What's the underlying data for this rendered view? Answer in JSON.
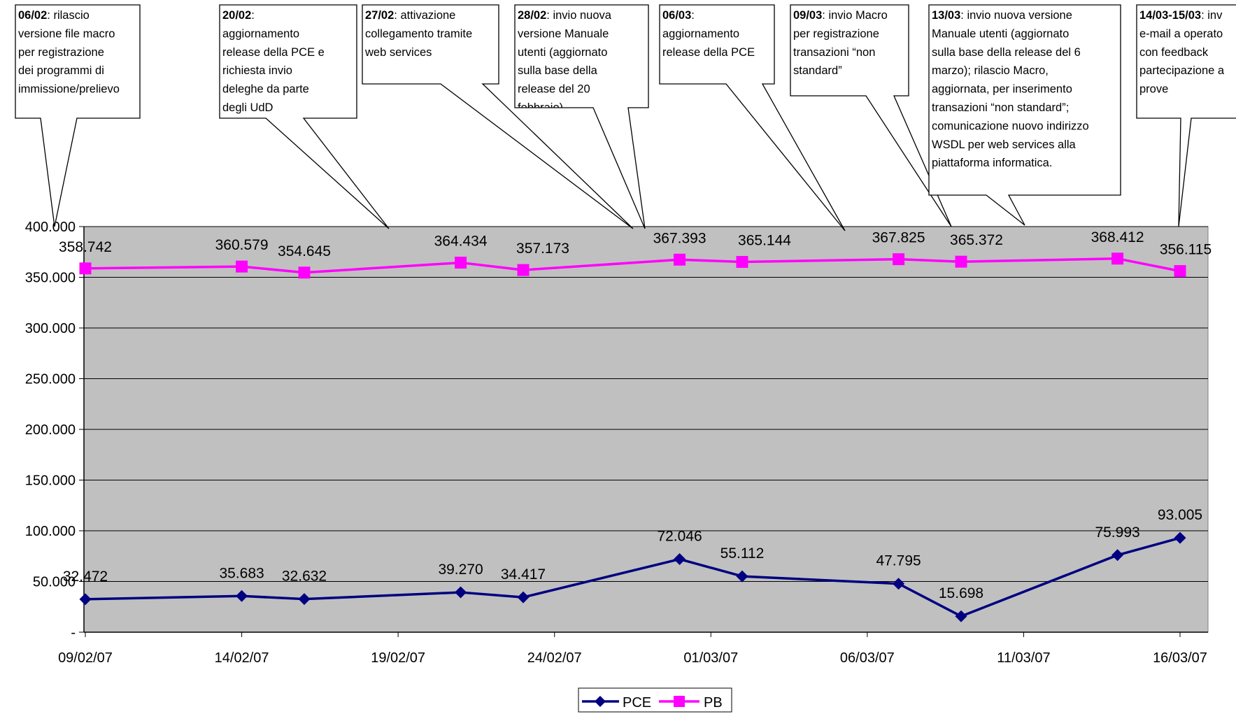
{
  "chart_data": {
    "type": "line",
    "x": [
      "09/02/07",
      "14/02/07",
      "16/02/07",
      "21/02/07",
      "23/02/07",
      "28/02/07",
      "02/03/07",
      "07/03/07",
      "09/03/07",
      "14/03/07",
      "16/03/07"
    ],
    "x_ticks": [
      "09/02/07",
      "14/02/07",
      "19/02/07",
      "24/02/07",
      "01/03/07",
      "06/03/07",
      "11/03/07",
      "16/03/07"
    ],
    "y_ticks": [
      "-",
      "50.000",
      "100.000",
      "150.000",
      "200.000",
      "250.000",
      "300.000",
      "350.000",
      "400.000"
    ],
    "ylim": [
      0,
      400000
    ],
    "grid": true,
    "legend_position": "bottom",
    "series": [
      {
        "name": "PCE",
        "color": "#000080",
        "marker": "diamond",
        "values": [
          32472,
          35683,
          32632,
          39270,
          34417,
          72046,
          55112,
          47795,
          15698,
          75993,
          93005
        ],
        "labels": [
          "32.472",
          "35.683",
          "32.632",
          "39.270",
          "34.417",
          "72.046",
          "55.112",
          "47.795",
          "15.698",
          "75.993",
          "93.005"
        ]
      },
      {
        "name": "PB",
        "color": "#FF00FF",
        "marker": "square",
        "values": [
          358742,
          360579,
          354645,
          364434,
          357173,
          367393,
          365144,
          367825,
          365372,
          368412,
          356115
        ],
        "labels": [
          "358.742",
          "360.579",
          "354.645",
          "364.434",
          "357.173",
          "367.393",
          "365.144",
          "367.825",
          "365.372",
          "368.412",
          "356.115"
        ]
      }
    ],
    "annotations": [
      {
        "bold": "06/02",
        "lines": [
          ": rilascio",
          "versione file macro",
          "per registrazione",
          "dei programmi di",
          "immissione/prelievo"
        ]
      },
      {
        "bold": "20/02",
        "lines": [
          ":",
          "aggiornamento",
          "release della PCE e",
          "richiesta invio",
          "deleghe da parte",
          "degli UdD"
        ]
      },
      {
        "bold": "27/02",
        "lines": [
          ": attivazione",
          "collegamento tramite",
          "web services"
        ]
      },
      {
        "bold": "28/02",
        "lines": [
          ": invio nuova",
          "versione Manuale",
          "utenti (aggiornato",
          "sulla base della",
          "release del 20",
          "febbraio)"
        ]
      },
      {
        "bold": "06/03",
        "lines": [
          ":",
          "aggiornamento",
          "release della PCE"
        ]
      },
      {
        "bold": "09/03",
        "lines": [
          ": invio Macro",
          "per registrazione",
          "transazioni “non",
          "standard”"
        ]
      },
      {
        "bold": "13/03",
        "lines": [
          ": invio nuova versione",
          "Manuale utenti (aggiornato",
          "sulla base della release del 6",
          "marzo); rilascio Macro,",
          "aggiornata, per inserimento",
          "transazioni “non standard”;",
          "comunicazione nuovo indirizzo",
          "WSDL per web services alla",
          "piattaforma informatica."
        ]
      },
      {
        "bold": "14/03-15/03",
        "lines": [
          ": inv",
          "e-mail a operato",
          "con feedback",
          "partecipazione a",
          "prove"
        ]
      }
    ]
  }
}
